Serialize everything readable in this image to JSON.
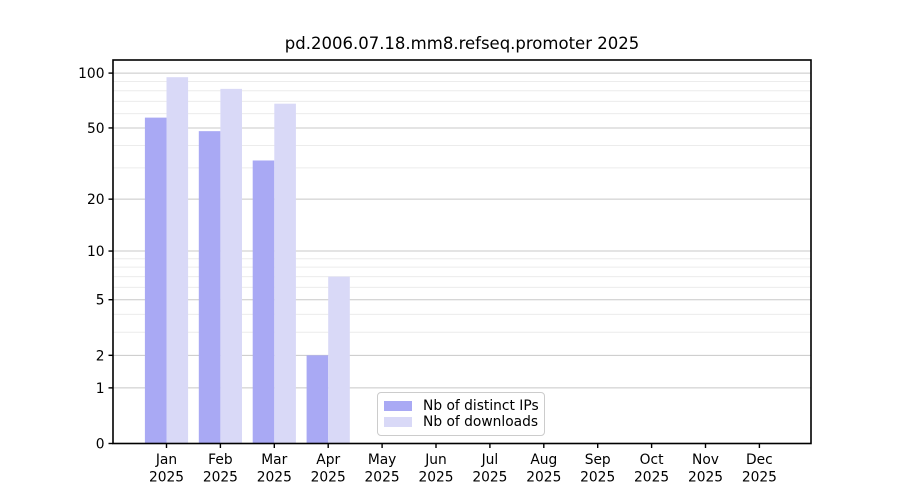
{
  "chart_data": {
    "type": "bar",
    "title": "pd.2006.07.18.mm8.refseq.promoter 2025",
    "categories": [
      "Jan",
      "Feb",
      "Mar",
      "Apr",
      "May",
      "Jun",
      "Jul",
      "Aug",
      "Sep",
      "Oct",
      "Nov",
      "Dec"
    ],
    "x_year": "2025",
    "series": [
      {
        "name": "Nb of distinct IPs",
        "color": "#a9a9f4",
        "values": [
          57,
          48,
          33,
          2,
          0,
          0,
          0,
          0,
          0,
          0,
          0,
          0
        ]
      },
      {
        "name": "Nb of downloads",
        "color": "#d9d9f7",
        "values": [
          95,
          82,
          68,
          7,
          0,
          0,
          0,
          0,
          0,
          0,
          0,
          0
        ]
      }
    ],
    "yscale": "log1p",
    "ylim": [
      0,
      100
    ],
    "yticks": [
      0,
      1,
      2,
      5,
      10,
      20,
      50,
      100
    ],
    "minor_yticks": [
      3,
      4,
      6,
      7,
      8,
      9,
      30,
      40,
      60,
      70,
      80,
      90
    ],
    "grid": true,
    "legend_position": "lower-center",
    "colors": {
      "major_grid": "#c8c8c8",
      "minor_grid": "#ececec",
      "frame": "#000000",
      "text": "#000000",
      "background": "#ffffff"
    }
  }
}
